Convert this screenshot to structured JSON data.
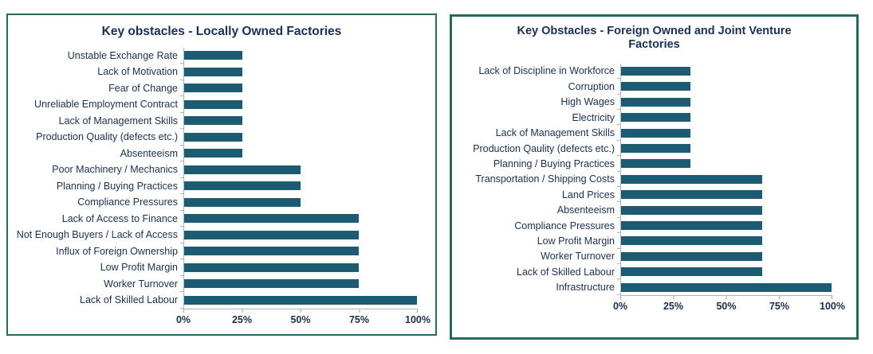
{
  "colors": {
    "bar": "#1d5b72",
    "box_border": "#266a5e",
    "title_text": "#192f55",
    "label_text": "#1a3050",
    "axis_line": "#a3bdb5"
  },
  "chart_data": [
    {
      "type": "bar",
      "orientation": "horizontal",
      "title": "Key obstacles - Locally Owned Factories",
      "categories": [
        "Unstable Exchange Rate",
        "Lack of Motivation",
        "Fear of Change",
        "Unreliable Employment Contract",
        "Lack of Management Skills",
        "Production Quality (defects etc.)",
        "Absenteeism",
        "Poor Machinery / Mechanics",
        "Planning / Buying Practices",
        "Compliance Pressures",
        "Lack of Access to Finance",
        "Not Enough Buyers / Lack of Access",
        "Influx of Foreign Ownership",
        "Low Profit Margin",
        "Worker Turnover",
        "Lack of Skilled Labour"
      ],
      "values": [
        25,
        25,
        25,
        25,
        25,
        25,
        25,
        50,
        50,
        50,
        75,
        75,
        75,
        75,
        75,
        100
      ],
      "unit": "%",
      "xlabel": "",
      "ylabel": "",
      "xlim": [
        0,
        100
      ],
      "x_ticks": [
        "0%",
        "25%",
        "50%",
        "75%",
        "100%"
      ],
      "grid": false,
      "legend": false,
      "bar_color": "#1d5b72"
    },
    {
      "type": "bar",
      "orientation": "horizontal",
      "title": "Key Obstacles - Foreign Owned and Joint Venture Factories",
      "categories": [
        "Lack of Discipline in Workforce",
        "Corruption",
        "High Wages",
        "Electricity",
        "Lack of Management Skills",
        "Production Qaulity (defects etc.)",
        "Planning / Buying Practices",
        "Transportation / Shipping Costs",
        "Land Prices",
        "Absenteeism",
        "Compliance Pressures",
        "Low Profit Margin",
        "Worker Turnover",
        "Lack of Skilled Labour",
        "Infrastructure"
      ],
      "values": [
        33,
        33,
        33,
        33,
        33,
        33,
        33,
        67,
        67,
        67,
        67,
        67,
        67,
        67,
        100
      ],
      "unit": "%",
      "xlabel": "",
      "ylabel": "",
      "xlim": [
        0,
        100
      ],
      "x_ticks": [
        "0%",
        "25%",
        "50%",
        "75%",
        "100%"
      ],
      "grid": false,
      "legend": false,
      "bar_color": "#1d5b72"
    }
  ]
}
